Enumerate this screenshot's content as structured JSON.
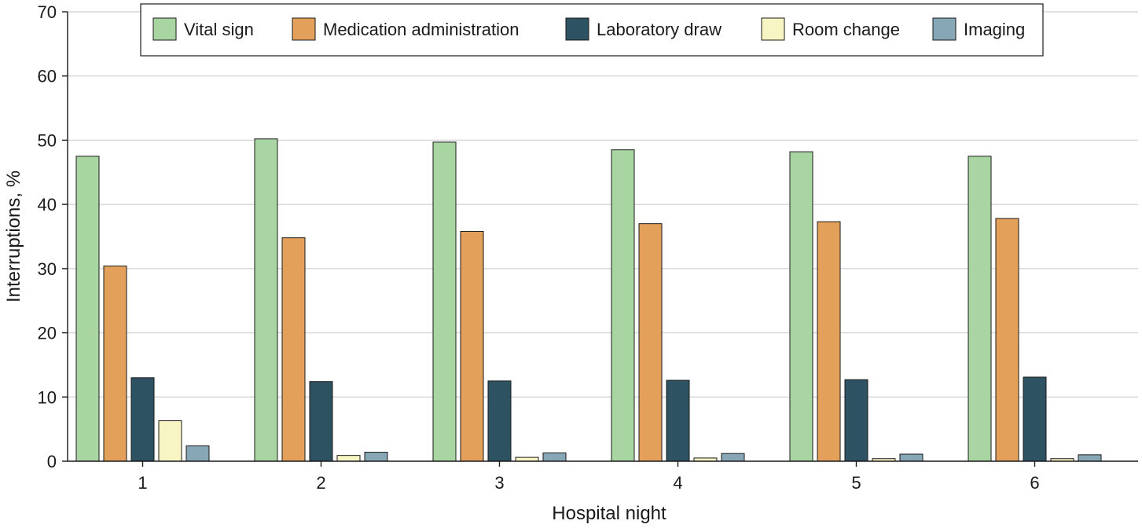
{
  "chart_data": {
    "type": "bar",
    "title": "",
    "xlabel": "Hospital night",
    "ylabel": "Interruptions, %",
    "ylim": [
      0,
      70
    ],
    "yticks": [
      0,
      10,
      20,
      30,
      40,
      50,
      60,
      70
    ],
    "grid": true,
    "legend_position": "top",
    "categories": [
      "1",
      "2",
      "3",
      "4",
      "5",
      "6"
    ],
    "series": [
      {
        "name": "Vital sign",
        "color": "#a8d5a2",
        "values": [
          47.5,
          50.2,
          49.7,
          48.5,
          48.2,
          47.5
        ]
      },
      {
        "name": "Medication administration",
        "color": "#e3a05a",
        "values": [
          30.4,
          34.8,
          35.8,
          37.0,
          37.3,
          37.8
        ]
      },
      {
        "name": "Laboratory draw",
        "color": "#2d5261",
        "values": [
          13.0,
          12.4,
          12.5,
          12.6,
          12.7,
          13.1
        ]
      },
      {
        "name": "Room change",
        "color": "#f8f5c4",
        "values": [
          6.3,
          0.9,
          0.6,
          0.5,
          0.4,
          0.4
        ]
      },
      {
        "name": "Imaging",
        "color": "#87a7b6",
        "values": [
          2.4,
          1.4,
          1.3,
          1.2,
          1.1,
          1.0
        ]
      }
    ]
  }
}
